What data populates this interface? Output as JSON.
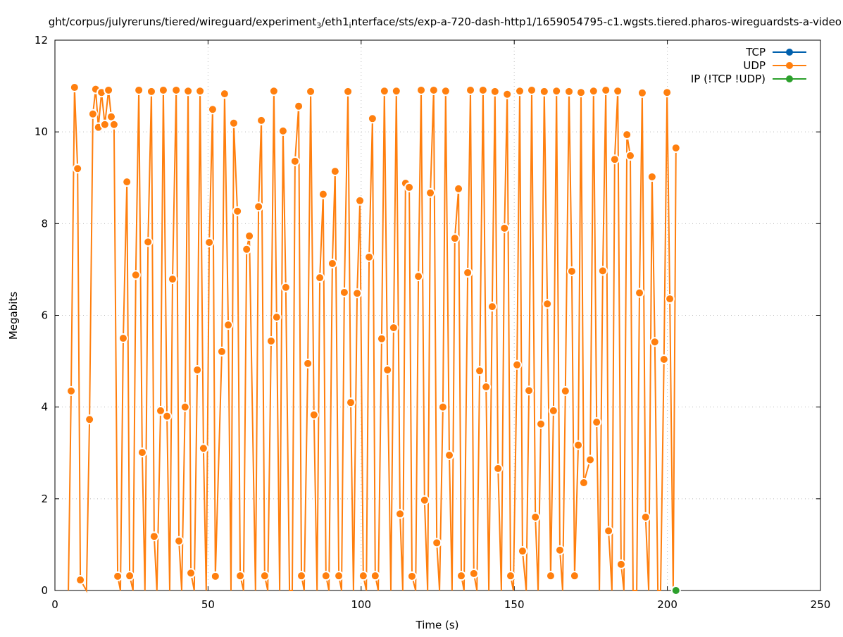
{
  "chart_data": {
    "type": "line",
    "title_parts": [
      {
        "text": "ght/corpus/julyreruns/tiered/wireguard/experiment"
      },
      {
        "sub": "3"
      },
      {
        "text": "/eth1"
      },
      {
        "sub": "i"
      },
      {
        "text": "nterface/sts/exp-a-720-dash-http1/1659054795-c1.wgsts.tiered.pharos-wireguardsts-a-video"
      }
    ],
    "xlabel": "Time (s)",
    "ylabel": "Megabits",
    "xlim": [
      0,
      250
    ],
    "ylim": [
      0,
      12
    ],
    "xticks": [
      "0",
      "50",
      "100",
      "150",
      "200",
      "250"
    ],
    "yticks": [
      "0",
      "2",
      "4",
      "6",
      "8",
      "10",
      "12"
    ],
    "grid": true,
    "legend_position": "top-right",
    "series": [
      {
        "name": "TCP",
        "color": "#0060ad",
        "x": [],
        "y": []
      },
      {
        "name": "UDP",
        "color": "#ff7f0e",
        "x": [
          4.4,
          5.3,
          6.4,
          7.4,
          8.3,
          10.3,
          11.3,
          12.4,
          13.3,
          14.2,
          15.2,
          16.3,
          17.5,
          18.4,
          19.3,
          20.5,
          21.4,
          22.3,
          23.5,
          24.4,
          25.5,
          26.4,
          27.4,
          28.5,
          29.4,
          30.4,
          31.5,
          32.4,
          33.3,
          34.5,
          35.4,
          36.6,
          37.5,
          38.4,
          39.6,
          40.5,
          41.4,
          42.5,
          43.5,
          44.4,
          45.5,
          46.5,
          47.4,
          48.5,
          49.4,
          50.4,
          51.5,
          52.4,
          54.5,
          55.4,
          56.6,
          57.5,
          58.4,
          59.6,
          60.5,
          61.6,
          62.6,
          63.5,
          65.5,
          66.5,
          67.4,
          68.5,
          69.5,
          70.6,
          71.5,
          72.4,
          73.4,
          74.5,
          75.4,
          76.6,
          77.5,
          78.4,
          79.6,
          80.5,
          81.4,
          82.6,
          83.5,
          84.6,
          85.6,
          86.5,
          87.6,
          88.5,
          89.5,
          90.6,
          91.5,
          92.7,
          93.6,
          94.5,
          95.7,
          96.6,
          97.5,
          98.7,
          99.6,
          100.7,
          101.7,
          102.6,
          103.7,
          104.6,
          105.6,
          106.7,
          107.6,
          108.6,
          109.7,
          110.6,
          111.5,
          112.7,
          113.6,
          114.5,
          115.7,
          116.6,
          117.8,
          118.7,
          119.6,
          120.7,
          121.7,
          122.6,
          123.7,
          124.7,
          125.6,
          126.7,
          127.6,
          128.8,
          129.7,
          130.6,
          131.8,
          132.7,
          133.6,
          134.8,
          135.7,
          136.8,
          137.8,
          138.7,
          139.8,
          140.8,
          141.7,
          142.8,
          143.7,
          144.7,
          145.8,
          146.8,
          147.7,
          148.8,
          149.7,
          150.9,
          151.8,
          152.7,
          153.9,
          154.8,
          155.7,
          156.9,
          157.8,
          158.7,
          159.8,
          160.8,
          161.9,
          162.8,
          163.8,
          164.9,
          165.8,
          166.7,
          167.9,
          168.8,
          169.7,
          170.9,
          171.8,
          172.7,
          174.8,
          175.9,
          176.9,
          177.8,
          178.9,
          179.9,
          180.8,
          181.9,
          182.8,
          183.8,
          184.9,
          185.8,
          186.8,
          187.9,
          188.8,
          190.0,
          190.9,
          191.8,
          192.9,
          193.9,
          195.0,
          195.9,
          196.9,
          197.8,
          198.9,
          199.9,
          200.8,
          201.9,
          202.8
        ],
        "y": [
          0,
          4.35,
          10.97,
          9.2,
          0.23,
          0,
          3.73,
          10.39,
          10.93,
          10.1,
          10.86,
          10.16,
          10.91,
          10.33,
          10.16,
          0.31,
          0,
          5.5,
          8.91,
          0.32,
          0,
          6.88,
          10.91,
          3.01,
          0,
          7.6,
          10.88,
          1.18,
          0,
          3.92,
          10.91,
          3.8,
          0,
          6.79,
          10.91,
          1.08,
          0,
          4.0,
          10.89,
          0.38,
          0,
          4.81,
          10.89,
          3.1,
          0,
          7.59,
          10.49,
          0.31,
          5.21,
          10.83,
          5.79,
          0,
          10.19,
          8.27,
          0.32,
          0,
          7.44,
          7.73,
          0,
          8.37,
          10.25,
          0.32,
          0,
          5.44,
          10.89,
          5.96,
          0,
          10.02,
          6.61,
          0,
          0,
          9.36,
          10.56,
          0.32,
          0,
          4.95,
          10.88,
          3.83,
          0,
          6.82,
          8.64,
          0.32,
          0,
          7.13,
          9.14,
          0.32,
          0,
          6.5,
          10.88,
          4.1,
          0,
          6.48,
          8.5,
          0.32,
          0,
          7.27,
          10.29,
          0.32,
          0,
          5.49,
          10.89,
          4.81,
          0,
          5.73,
          10.89,
          1.67,
          0,
          8.88,
          8.79,
          0.31,
          0,
          6.85,
          10.91,
          1.97,
          0,
          8.67,
          10.91,
          1.04,
          0,
          4.0,
          10.89,
          2.95,
          0,
          7.68,
          8.76,
          0.32,
          0,
          6.93,
          10.91,
          0.37,
          0,
          4.79,
          10.91,
          4.44,
          0,
          6.19,
          10.88,
          2.66,
          0,
          7.9,
          10.82,
          0.32,
          0,
          4.92,
          10.89,
          0.86,
          0,
          4.36,
          10.91,
          1.6,
          0,
          3.63,
          10.88,
          6.25,
          0.32,
          3.92,
          10.89,
          0.88,
          0,
          4.35,
          10.88,
          6.96,
          0.32,
          3.17,
          10.86,
          2.35,
          2.85,
          10.89,
          3.67,
          0,
          6.97,
          10.91,
          1.3,
          0,
          9.4,
          10.89,
          0.57,
          0,
          9.94,
          9.48,
          0,
          0,
          6.49,
          10.85,
          1.6,
          0,
          9.02,
          5.42,
          0,
          0,
          5.04,
          10.86,
          6.36,
          0,
          9.65
        ]
      },
      {
        "name": "IP (!TCP  !UDP)",
        "color": "#2ca02c",
        "x": [
          202.8
        ],
        "y": [
          0
        ]
      }
    ]
  }
}
